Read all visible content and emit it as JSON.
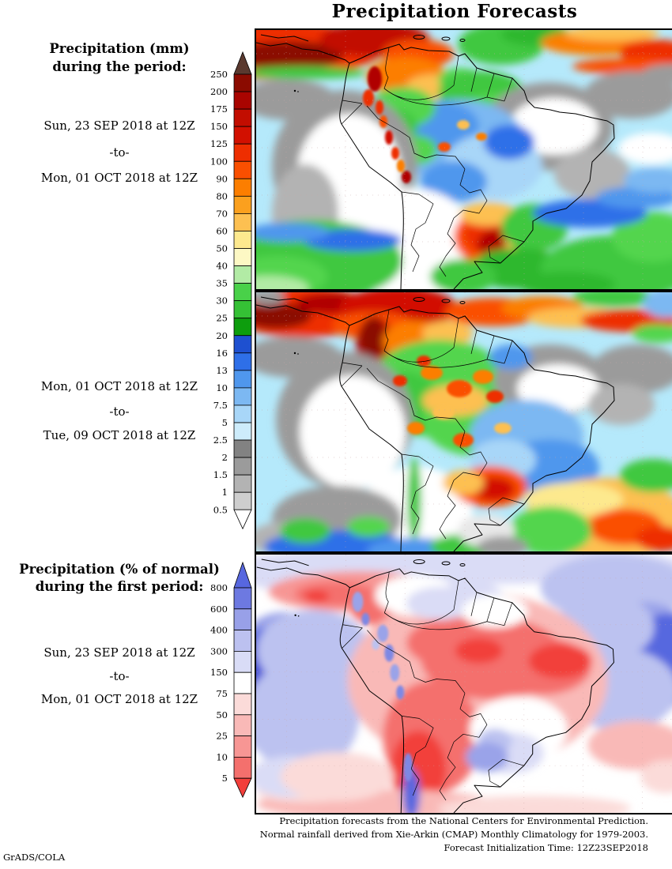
{
  "title": "Precipitation Forecasts",
  "left_column": {
    "block1": {
      "heading": [
        "Precipitation (mm)",
        "during the period:"
      ],
      "dates": [
        "Sun, 23 SEP 2018 at 12Z",
        "-to-",
        "Mon, 01 OCT 2018 at 12Z"
      ]
    },
    "block2": {
      "dates": [
        "Mon, 01 OCT 2018 at 12Z",
        "-to-",
        "Tue, 09 OCT 2018 at 12Z"
      ]
    },
    "block3": {
      "heading": [
        "Precipitation (% of normal)",
        "during the first period:"
      ],
      "dates": [
        "Sun, 23 SEP 2018 at 12Z",
        "-to-",
        "Mon, 01 OCT 2018 at 12Z"
      ]
    }
  },
  "colorbars": {
    "mm": {
      "units": "mm",
      "ticks": [
        "250",
        "200",
        "175",
        "150",
        "125",
        "100",
        "90",
        "80",
        "70",
        "60",
        "50",
        "40",
        "35",
        "30",
        "25",
        "20",
        "16",
        "13",
        "10",
        "7.5",
        "5",
        "2.5",
        "2",
        "1.5",
        "1",
        "0.5"
      ],
      "segment_colors": [
        "#8b0b00",
        "#a90400",
        "#c20d00",
        "#d21000",
        "#ee2e00",
        "#fa4f00",
        "#fc7e00",
        "#fba01e",
        "#fdc051",
        "#fde98e",
        "#fdf8c4",
        "#b2eba5",
        "#49d149",
        "#35c135",
        "#0d9d0d",
        "#1e50d0",
        "#2e6fe8",
        "#4f97ed",
        "#7cb8f2",
        "#a8d6f8",
        "#cdecfb",
        "#828282",
        "#9b9b9b",
        "#b3b3b3",
        "#cecece"
      ],
      "arrow_top": "#5a392f",
      "arrow_bottom": "#ffffff"
    },
    "percent": {
      "units": "% of normal",
      "ticks": [
        "800",
        "600",
        "400",
        "300",
        "150",
        "75",
        "50",
        "25",
        "10",
        "5"
      ],
      "segment_colors": [
        "#6d79e1",
        "#98a0e8",
        "#bcc1f0",
        "#d9dcf6",
        "#ffffff",
        "#fbdbd9",
        "#f9b9b7",
        "#f79694",
        "#f4706d"
      ],
      "arrow_top": "#5767df",
      "arrow_bottom": "#f23f3b"
    }
  },
  "footer": {
    "lines": [
      "Precipitation forecasts from the National Centers for Environmental Prediction.",
      "Normal rainfall derived from Xie-Arkin (CMAP) Monthly Climatology for 1979-2003.",
      "Forecast Initialization Time: 12Z23SEP2018"
    ]
  },
  "credit": "GrADS/COLA"
}
